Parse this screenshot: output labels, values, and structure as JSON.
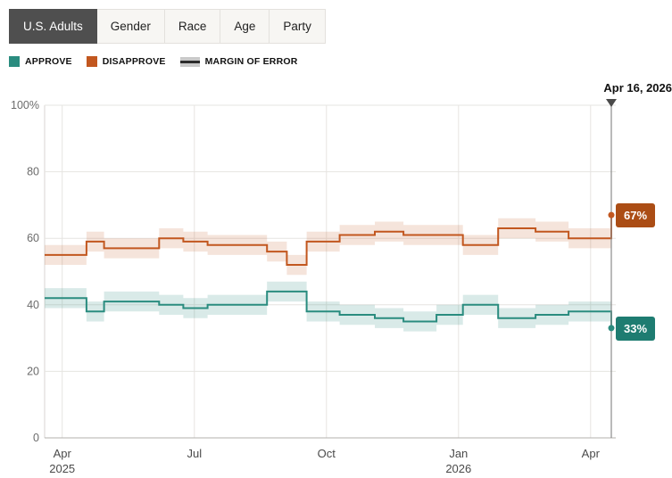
{
  "tabs": {
    "items": [
      {
        "label": "U.S. Adults",
        "selected": true
      },
      {
        "label": "Gender",
        "selected": false
      },
      {
        "label": "Race",
        "selected": false
      },
      {
        "label": "Age",
        "selected": false
      },
      {
        "label": "Party",
        "selected": false
      }
    ]
  },
  "legend": {
    "approve_label": "APPROVE",
    "disapprove_label": "DISAPPROVE",
    "moe_label": "MARGIN OF ERROR"
  },
  "annotation": {
    "current_date": "Apr 16, 2026"
  },
  "end_labels": {
    "disapprove": "67%",
    "approve": "33%"
  },
  "colors": {
    "approve": "#2a8c7f",
    "approve_dark": "#1e7c71",
    "disapprove": "#c2571f",
    "disapprove_dark": "#ab4d15",
    "moe_swatch": "#c9c9c9",
    "tab_selected_bg": "#4f4f4f"
  },
  "chart_data": {
    "type": "line",
    "variant": "step-after",
    "title": "",
    "xlabel": "",
    "ylabel": "",
    "ylim": [
      0,
      100
    ],
    "xlim_months": [
      -0.4,
      12.47
    ],
    "x_unit": "months since Apr 1, 2025",
    "grid": true,
    "margin_of_error": 3,
    "current_date": "Apr 16, 2026",
    "now_line_month": 12.47,
    "y_ticks": [
      {
        "v": 100,
        "label": "100%"
      },
      {
        "v": 80,
        "label": "80"
      },
      {
        "v": 60,
        "label": "60"
      },
      {
        "v": 40,
        "label": "40"
      },
      {
        "v": 20,
        "label": "20"
      },
      {
        "v": 0,
        "label": "0"
      }
    ],
    "x_ticks": [
      {
        "m": 0,
        "label": "Apr",
        "sub": "2025"
      },
      {
        "m": 3,
        "label": "Jul"
      },
      {
        "m": 6,
        "label": "Oct"
      },
      {
        "m": 9,
        "label": "Jan",
        "sub": "2026"
      },
      {
        "m": 12,
        "label": "Apr"
      }
    ],
    "series": [
      {
        "name": "Approve",
        "color": "#2a8c7f",
        "band_color": "rgba(42,140,127,0.18)",
        "end_value": 33,
        "points": [
          [
            -0.4,
            42
          ],
          [
            0.55,
            38
          ],
          [
            0.95,
            41
          ],
          [
            2.2,
            40
          ],
          [
            2.75,
            39
          ],
          [
            3.3,
            40
          ],
          [
            4.65,
            44
          ],
          [
            5.55,
            38
          ],
          [
            6.3,
            37
          ],
          [
            7.1,
            36
          ],
          [
            7.75,
            35
          ],
          [
            8.5,
            37
          ],
          [
            9.1,
            40
          ],
          [
            9.9,
            36
          ],
          [
            10.75,
            37
          ],
          [
            11.5,
            38
          ],
          [
            12.47,
            33
          ]
        ]
      },
      {
        "name": "Disapprove",
        "color": "#c2571f",
        "band_color": "rgba(194,87,31,0.16)",
        "end_value": 67,
        "points": [
          [
            -0.4,
            55
          ],
          [
            0.55,
            59
          ],
          [
            0.95,
            57
          ],
          [
            2.2,
            60
          ],
          [
            2.75,
            59
          ],
          [
            3.3,
            58
          ],
          [
            4.65,
            56
          ],
          [
            5.1,
            52
          ],
          [
            5.55,
            59
          ],
          [
            6.3,
            61
          ],
          [
            7.1,
            62
          ],
          [
            7.75,
            61
          ],
          [
            8.5,
            61
          ],
          [
            9.1,
            58
          ],
          [
            9.9,
            63
          ],
          [
            10.75,
            62
          ],
          [
            11.5,
            60
          ],
          [
            12.47,
            67
          ]
        ]
      }
    ]
  }
}
